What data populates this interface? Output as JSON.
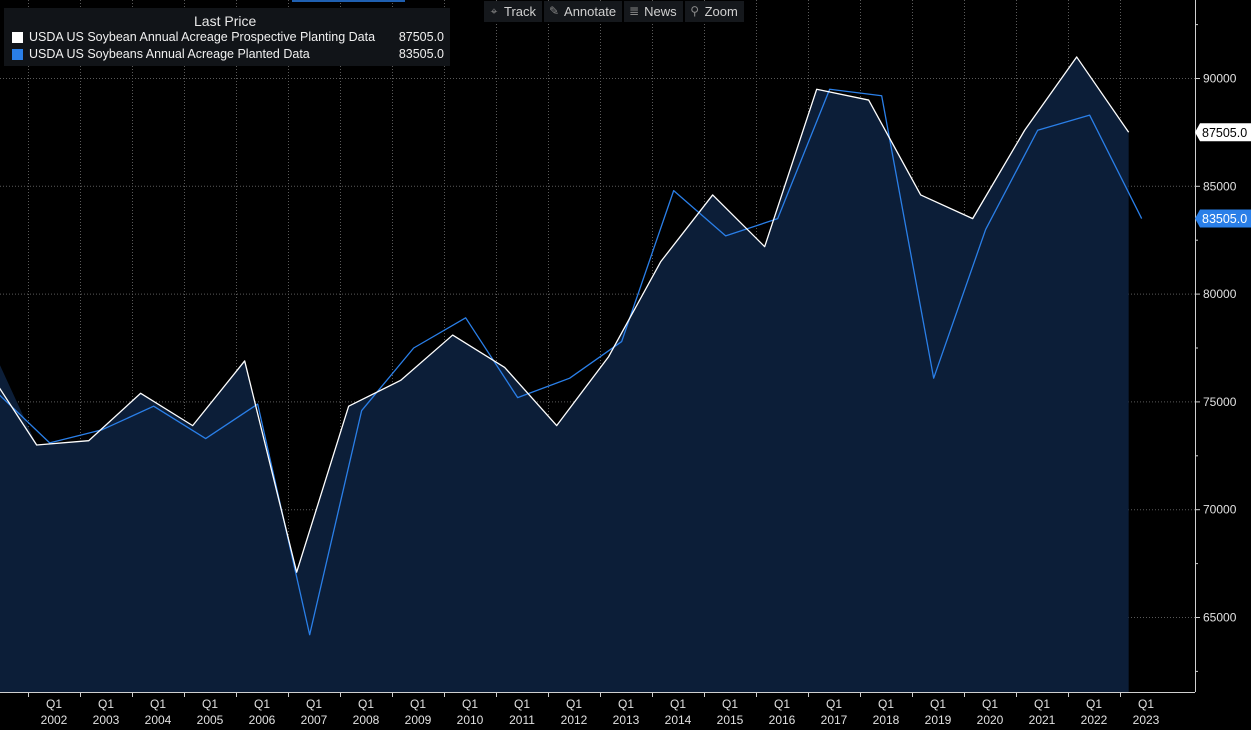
{
  "toolbar": {
    "items": [
      {
        "label": "Track",
        "icon": "crosshair-icon"
      },
      {
        "label": "Annotate",
        "icon": "pencil-icon"
      },
      {
        "label": "News",
        "icon": "news-icon"
      },
      {
        "label": "Zoom",
        "icon": "magnifier-icon"
      }
    ]
  },
  "legend": {
    "header": "Last Price",
    "series": [
      {
        "name": "USDA US Soybean Annual Acreage Prospective Planting Data",
        "value": "87505.0",
        "color": "#ffffff"
      },
      {
        "name": "USDA US Soybeans Annual Acreage Planted Data",
        "value": "83505.0",
        "color": "#2a7fe8"
      }
    ]
  },
  "chart_data": {
    "type": "line",
    "background": "#000000",
    "fill_color": "#0c1e38",
    "grid": true,
    "grid_style": "dotted",
    "ylim": [
      61500,
      93500
    ],
    "y_ticks": [
      65000,
      70000,
      75000,
      80000,
      85000,
      90000
    ],
    "y_tick_labels": [
      "65000",
      "70000",
      "75000",
      "80000",
      "85000",
      "90000"
    ],
    "x_categories": [
      {
        "quarter": "Q1",
        "year": "2002"
      },
      {
        "quarter": "Q1",
        "year": "2003"
      },
      {
        "quarter": "Q1",
        "year": "2004"
      },
      {
        "quarter": "Q1",
        "year": "2005"
      },
      {
        "quarter": "Q1",
        "year": "2006"
      },
      {
        "quarter": "Q1",
        "year": "2007"
      },
      {
        "quarter": "Q1",
        "year": "2008"
      },
      {
        "quarter": "Q1",
        "year": "2009"
      },
      {
        "quarter": "Q1",
        "year": "2010"
      },
      {
        "quarter": "Q1",
        "year": "2011"
      },
      {
        "quarter": "Q1",
        "year": "2012"
      },
      {
        "quarter": "Q1",
        "year": "2013"
      },
      {
        "quarter": "Q1",
        "year": "2014"
      },
      {
        "quarter": "Q1",
        "year": "2015"
      },
      {
        "quarter": "Q1",
        "year": "2016"
      },
      {
        "quarter": "Q1",
        "year": "2017"
      },
      {
        "quarter": "Q1",
        "year": "2018"
      },
      {
        "quarter": "Q1",
        "year": "2019"
      },
      {
        "quarter": "Q1",
        "year": "2020"
      },
      {
        "quarter": "Q1",
        "year": "2021"
      },
      {
        "quarter": "Q1",
        "year": "2022"
      },
      {
        "quarter": "Q1",
        "year": "2023"
      }
    ],
    "series": [
      {
        "name": "USDA US Soybean Annual Acreage Prospective Planting Data",
        "color": "#ffffff",
        "filled": true,
        "x": [
          "2001-03",
          "2002-03",
          "2003-03",
          "2004-03",
          "2005-03",
          "2006-03",
          "2007-03",
          "2008-03",
          "2009-03",
          "2010-03",
          "2011-03",
          "2012-03",
          "2013-03",
          "2014-03",
          "2015-03",
          "2016-03",
          "2017-03",
          "2018-03",
          "2019-03",
          "2020-03",
          "2021-03",
          "2022-03",
          "2023-03"
        ],
        "values": [
          76700,
          73000,
          73200,
          75400,
          73900,
          76900,
          67100,
          74800,
          76000,
          78100,
          76600,
          73900,
          77100,
          81500,
          84600,
          82200,
          89500,
          89000,
          84600,
          83500,
          87600,
          91000,
          87505
        ],
        "last_value_label": "87505.0"
      },
      {
        "name": "USDA US Soybeans Annual Acreage Planted Data",
        "color": "#2a7fe8",
        "filled": false,
        "x": [
          "2001-06",
          "2002-06",
          "2003-06",
          "2004-06",
          "2005-06",
          "2006-06",
          "2007-06",
          "2008-06",
          "2009-06",
          "2010-06",
          "2011-06",
          "2012-06",
          "2013-06",
          "2014-06",
          "2015-06",
          "2016-06",
          "2017-06",
          "2018-06",
          "2019-06",
          "2020-06",
          "2021-06",
          "2022-06",
          "2023-06"
        ],
        "values": [
          75400,
          73100,
          73700,
          74800,
          73300,
          74900,
          64200,
          74600,
          77500,
          78900,
          75200,
          76100,
          77800,
          84800,
          82700,
          83500,
          89500,
          89200,
          76100,
          83000,
          87600,
          88300,
          83505
        ],
        "last_value_label": "83505.0"
      }
    ]
  }
}
